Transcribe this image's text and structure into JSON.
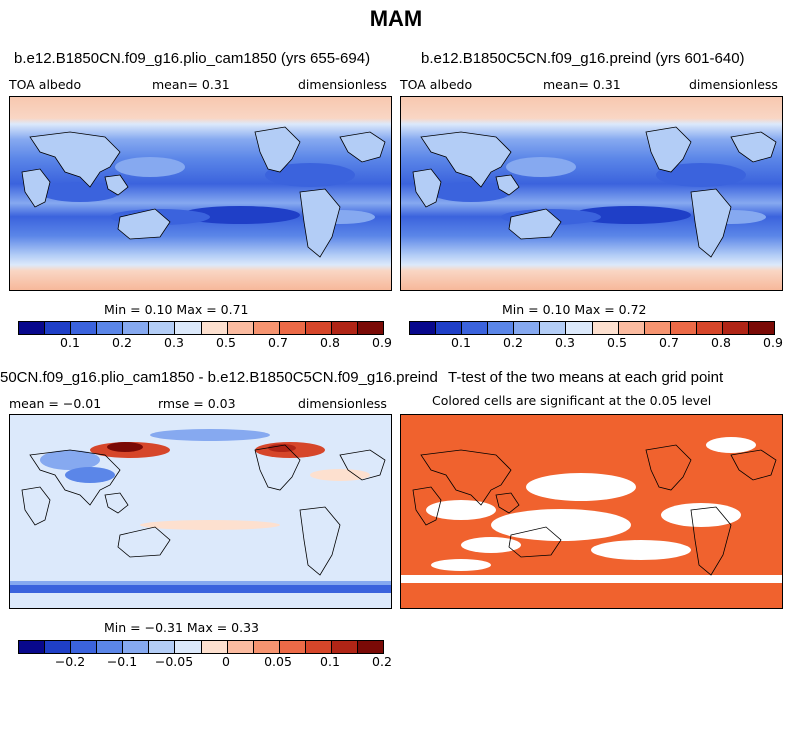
{
  "season": "MAM",
  "panels": {
    "plio": {
      "title": "b.e12.B1850CN.f09_g16.plio_cam1850 (yrs 655-694)",
      "variable": "TOA albedo",
      "mean": "mean=    0.31",
      "units": "dimensionless",
      "stats": "Min =    0.10 Max =    0.71"
    },
    "preind": {
      "title": "b.e12.B1850C5CN.f09_g16.preind (yrs 601-640)",
      "variable": "TOA albedo",
      "mean": "mean=    0.31",
      "units": "dimensionless",
      "stats": "Min =    0.10 Max =    0.72"
    },
    "diff": {
      "title": "50CN.f09_g16.plio_cam1850 - b.e12.B1850C5CN.f09_g16.preind",
      "mean": "mean = −0.01",
      "rmse": "rmse =    0.03",
      "units": "dimensionless",
      "stats": "Min =  −0.31 Max =    0.33"
    },
    "ttest": {
      "title": "T-test of the two means at each grid point",
      "subtitle": "Colored cells are significant at the 0.05 level"
    }
  },
  "colorbar_abs": {
    "labels": [
      "0.1",
      "0.2",
      "0.3",
      "0.5",
      "0.7",
      "0.8",
      "0.9"
    ],
    "colors": [
      "#08088c",
      "#1f3fc7",
      "#3b63dd",
      "#5b86e8",
      "#86a9f0",
      "#b3cdf6",
      "#dce9fb",
      "#fde0cf",
      "#fbbba0",
      "#f69470",
      "#ec6a47",
      "#d6462a",
      "#b02516",
      "#7a0a06"
    ]
  },
  "colorbar_diff": {
    "labels": [
      "−0.2",
      "−0.1",
      "−0.05",
      "0",
      "0.05",
      "0.1",
      "0.2"
    ],
    "colors": [
      "#08088c",
      "#1f3fc7",
      "#3b63dd",
      "#5b86e8",
      "#86a9f0",
      "#b3cdf6",
      "#dce9fb",
      "#fde0cf",
      "#fbbba0",
      "#f69470",
      "#ec6a47",
      "#d6462a",
      "#b02516",
      "#7a0a06"
    ]
  },
  "ttest_color": "#f0622e"
}
